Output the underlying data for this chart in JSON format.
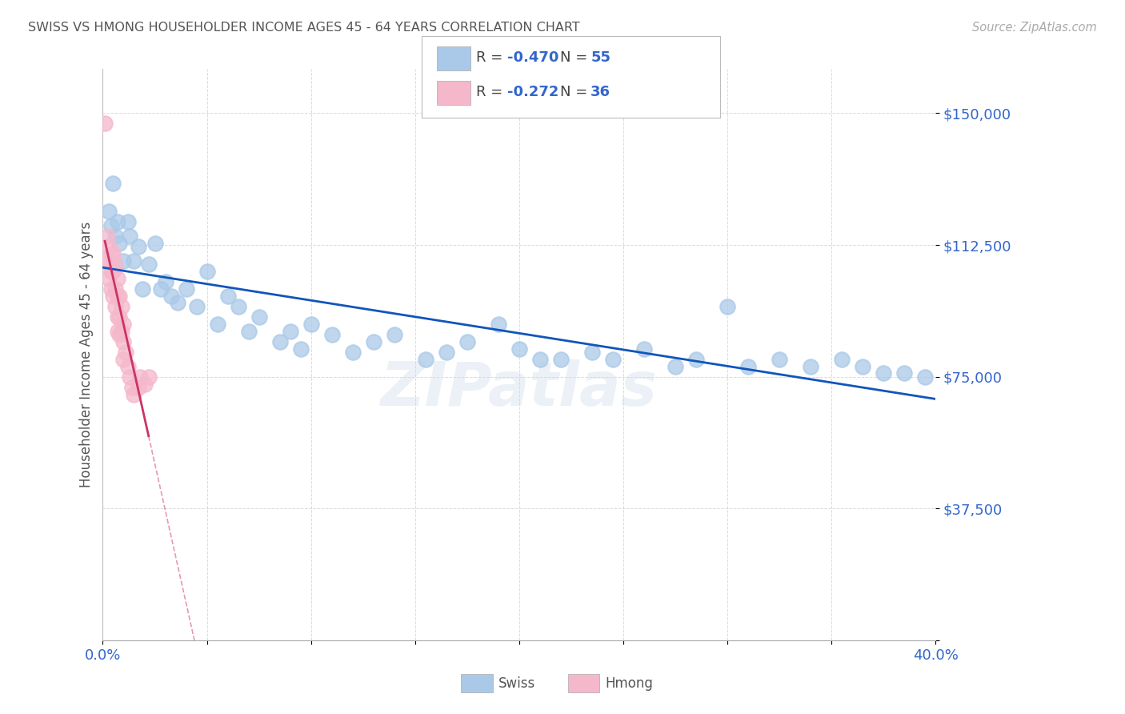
{
  "title": "SWISS VS HMONG HOUSEHOLDER INCOME AGES 45 - 64 YEARS CORRELATION CHART",
  "source": "Source: ZipAtlas.com",
  "ylabel": "Householder Income Ages 45 - 64 years",
  "xlim": [
    0.0,
    0.4
  ],
  "ylim": [
    0,
    162500
  ],
  "xticks": [
    0.0,
    0.05,
    0.1,
    0.15,
    0.2,
    0.25,
    0.3,
    0.35,
    0.4
  ],
  "yticks": [
    0,
    37500,
    75000,
    112500,
    150000
  ],
  "ytick_labels": [
    "",
    "$37,500",
    "$75,000",
    "$112,500",
    "$150,000"
  ],
  "swiss_R": -0.47,
  "swiss_N": 55,
  "hmong_R": -0.272,
  "hmong_N": 36,
  "swiss_color": "#aac9e8",
  "hmong_color": "#f5b8cb",
  "swiss_line_color": "#1155bb",
  "hmong_line_color": "#cc3366",
  "swiss_x": [
    0.003,
    0.004,
    0.005,
    0.006,
    0.007,
    0.008,
    0.01,
    0.012,
    0.013,
    0.015,
    0.017,
    0.019,
    0.022,
    0.025,
    0.028,
    0.03,
    0.033,
    0.036,
    0.04,
    0.045,
    0.05,
    0.055,
    0.06,
    0.065,
    0.07,
    0.075,
    0.085,
    0.09,
    0.095,
    0.1,
    0.11,
    0.12,
    0.13,
    0.14,
    0.155,
    0.165,
    0.175,
    0.19,
    0.2,
    0.21,
    0.22,
    0.235,
    0.245,
    0.26,
    0.275,
    0.285,
    0.3,
    0.31,
    0.325,
    0.34,
    0.355,
    0.365,
    0.375,
    0.385,
    0.395
  ],
  "swiss_y": [
    122000,
    118000,
    130000,
    115000,
    119000,
    113000,
    108000,
    119000,
    115000,
    108000,
    112000,
    100000,
    107000,
    113000,
    100000,
    102000,
    98000,
    96000,
    100000,
    95000,
    105000,
    90000,
    98000,
    95000,
    88000,
    92000,
    85000,
    88000,
    83000,
    90000,
    87000,
    82000,
    85000,
    87000,
    80000,
    82000,
    85000,
    90000,
    83000,
    80000,
    80000,
    82000,
    80000,
    83000,
    78000,
    80000,
    95000,
    78000,
    80000,
    78000,
    80000,
    78000,
    76000,
    76000,
    75000
  ],
  "hmong_x": [
    0.001,
    0.002,
    0.002,
    0.003,
    0.003,
    0.003,
    0.004,
    0.004,
    0.004,
    0.005,
    0.005,
    0.005,
    0.006,
    0.006,
    0.006,
    0.007,
    0.007,
    0.007,
    0.007,
    0.008,
    0.008,
    0.008,
    0.009,
    0.009,
    0.01,
    0.01,
    0.01,
    0.011,
    0.012,
    0.013,
    0.014,
    0.015,
    0.017,
    0.018,
    0.02,
    0.022
  ],
  "hmong_y": [
    147000,
    115000,
    108000,
    112000,
    107000,
    103000,
    110000,
    105000,
    100000,
    110000,
    105000,
    98000,
    107000,
    100000,
    95000,
    103000,
    98000,
    92000,
    88000,
    98000,
    92000,
    87000,
    95000,
    88000,
    90000,
    85000,
    80000,
    82000,
    78000,
    75000,
    72000,
    70000,
    72000,
    75000,
    73000,
    75000
  ],
  "hmong_trend_x0": 0.0,
  "hmong_trend_x1": 0.022,
  "hmong_trend_x_ext": 0.25,
  "background_color": "#ffffff",
  "grid_color": "#cccccc",
  "watermark": "ZIPatlas"
}
